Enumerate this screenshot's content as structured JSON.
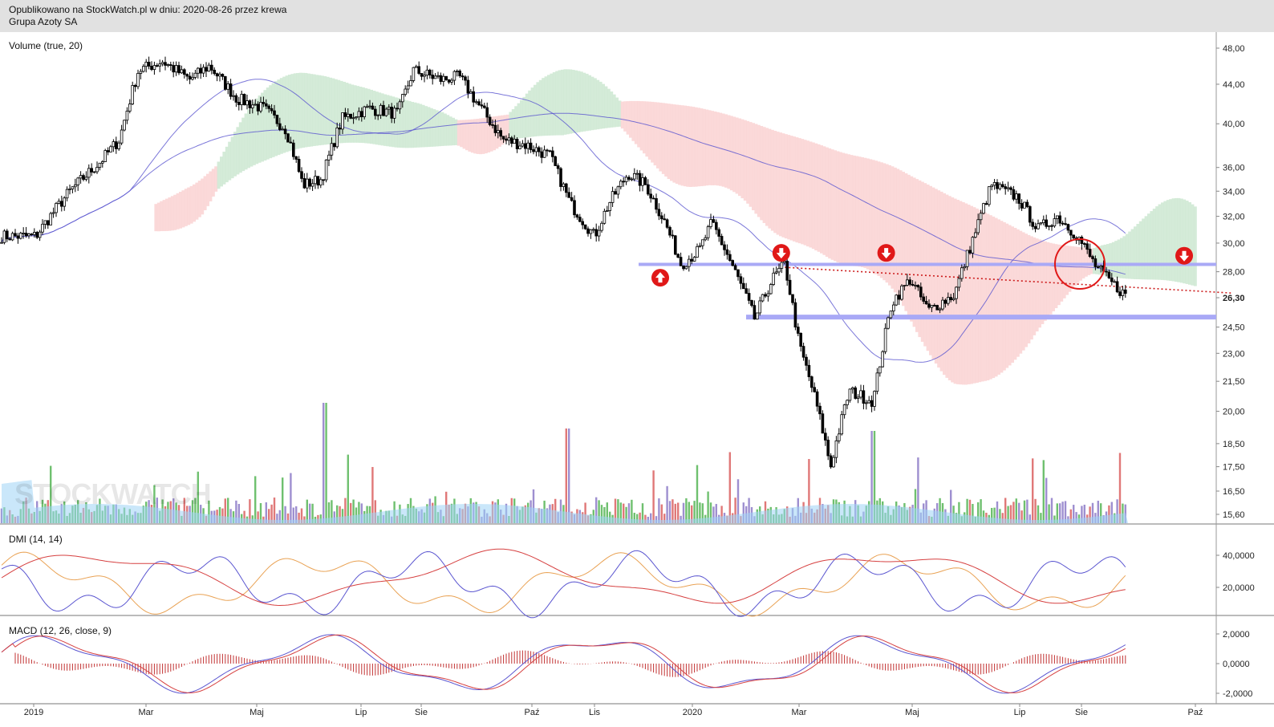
{
  "header": {
    "published": "Opublikowano na StockWatch.pl w dniu: 2020-08-26 przez krewa",
    "instrument": "Grupa Azoty SA"
  },
  "watermark": "STOCKWATCH",
  "colors": {
    "candle": "#000000",
    "cloud_bull": "#cfe9d4",
    "cloud_bear": "#fbd5d5",
    "ma": "#5a55d0",
    "support": "#a9a9f6",
    "trend": "#cc1b1b",
    "vol_up": "#6fc06f",
    "vol_down": "#e07878",
    "vol_neutral": "#9e8fd0",
    "vol_avg": "#9fd4f5",
    "dmi_plus": "#e9a254",
    "dmi_minus": "#5a55d0",
    "adx": "#d64040",
    "macd": "#5a55d0",
    "signal": "#d64040",
    "hist": "#c23232",
    "arrow": "#e01818"
  },
  "panels": {
    "price_label": "Volume (true, 20)",
    "dmi_label": "DMI (14, 14)",
    "macd_label": "MACD (12, 26, close, 9)"
  },
  "chart_data": [
    {
      "type": "candlestick",
      "title": "Grupa Azoty SA",
      "y_ticks": [
        "48,00",
        "44,00",
        "40,00",
        "36,00",
        "34,00",
        "32,00",
        "30,00",
        "28,00",
        "26,30",
        "24,50",
        "23,00",
        "21,50",
        "20,00",
        "18,50",
        "17,50",
        "16,50",
        "15,60"
      ],
      "last_price": "26,30",
      "x_ticks": [
        "2019",
        "Mar",
        "Maj",
        "Lip",
        "Sie",
        "Paź",
        "Lis",
        "2020",
        "Mar",
        "Maj",
        "Lip",
        "Sie",
        "Paź"
      ],
      "close_path": [
        [
          "2019-01-02",
          30.5
        ],
        [
          "2019-01-20",
          34.0
        ],
        [
          "2019-02-05",
          36.5
        ],
        [
          "2019-02-15",
          38.5
        ],
        [
          "2019-02-25",
          45.5
        ],
        [
          "2019-03-10",
          46.5
        ],
        [
          "2019-03-25",
          44.5
        ],
        [
          "2019-04-05",
          46.0
        ],
        [
          "2019-04-20",
          42.5
        ],
        [
          "2019-05-05",
          41.5
        ],
        [
          "2019-05-18",
          39.5
        ],
        [
          "2019-05-28",
          34.5
        ],
        [
          "2019-06-08",
          35.0
        ],
        [
          "2019-06-20",
          40.5
        ],
        [
          "2019-07-05",
          41.5
        ],
        [
          "2019-07-20",
          41.0
        ],
        [
          "2019-07-28",
          45.5
        ],
        [
          "2019-08-12",
          44.5
        ],
        [
          "2019-08-22",
          44.8
        ],
        [
          "2019-09-01",
          42.0
        ],
        [
          "2019-09-15",
          38.5
        ],
        [
          "2019-09-28",
          38.0
        ],
        [
          "2019-10-10",
          37.0
        ],
        [
          "2019-10-20",
          33.0
        ],
        [
          "2019-11-01",
          30.5
        ],
        [
          "2019-11-10",
          33.0
        ],
        [
          "2019-11-22",
          35.5
        ],
        [
          "2019-12-03",
          34.5
        ],
        [
          "2019-12-15",
          31.5
        ],
        [
          "2019-12-25",
          28.5
        ],
        [
          "2020-01-05",
          29.5
        ],
        [
          "2020-01-12",
          31.5
        ],
        [
          "2020-01-25",
          28.0
        ],
        [
          "2020-02-05",
          25.0
        ],
        [
          "2020-02-15",
          27.5
        ],
        [
          "2020-02-22",
          28.5
        ],
        [
          "2020-03-01",
          23.5
        ],
        [
          "2020-03-10",
          20.5
        ],
        [
          "2020-03-18",
          17.5
        ],
        [
          "2020-03-28",
          21.0
        ],
        [
          "2020-04-10",
          20.5
        ],
        [
          "2020-04-20",
          26.0
        ],
        [
          "2020-04-30",
          27.5
        ],
        [
          "2020-05-10",
          25.5
        ],
        [
          "2020-05-25",
          26.5
        ],
        [
          "2020-06-05",
          30.5
        ],
        [
          "2020-06-15",
          34.5
        ],
        [
          "2020-06-30",
          33.5
        ],
        [
          "2020-07-10",
          31.0
        ],
        [
          "2020-07-20",
          32.0
        ],
        [
          "2020-07-30",
          30.5
        ],
        [
          "2020-08-08",
          28.5
        ],
        [
          "2020-08-15",
          27.5
        ],
        [
          "2020-08-26",
          26.3
        ]
      ],
      "lines": {
        "support_upper": 28.5,
        "support_lower": 25.1,
        "trendline": {
          "from": [
            "2020-02-22",
            28.3
          ],
          "to": [
            "2020-10-20",
            26.6
          ]
        }
      },
      "signals": [
        {
          "dir": "up",
          "date": "2019-12-12",
          "price": 27.6
        },
        {
          "dir": "down",
          "date": "2020-02-20",
          "price": 29.3
        },
        {
          "dir": "down",
          "date": "2020-04-17",
          "price": 29.3
        },
        {
          "dir": "down",
          "date": "2020-09-25",
          "price": 29.1
        }
      ]
    },
    {
      "type": "line",
      "title": "DMI (14, 14)",
      "y_ticks": [
        "40,0000",
        "20,0000"
      ],
      "series": []
    },
    {
      "type": "line",
      "title": "MACD (12, 26, close, 9)",
      "y_ticks": [
        "2,0000",
        "0,0000",
        "-2,0000"
      ],
      "series": []
    }
  ]
}
